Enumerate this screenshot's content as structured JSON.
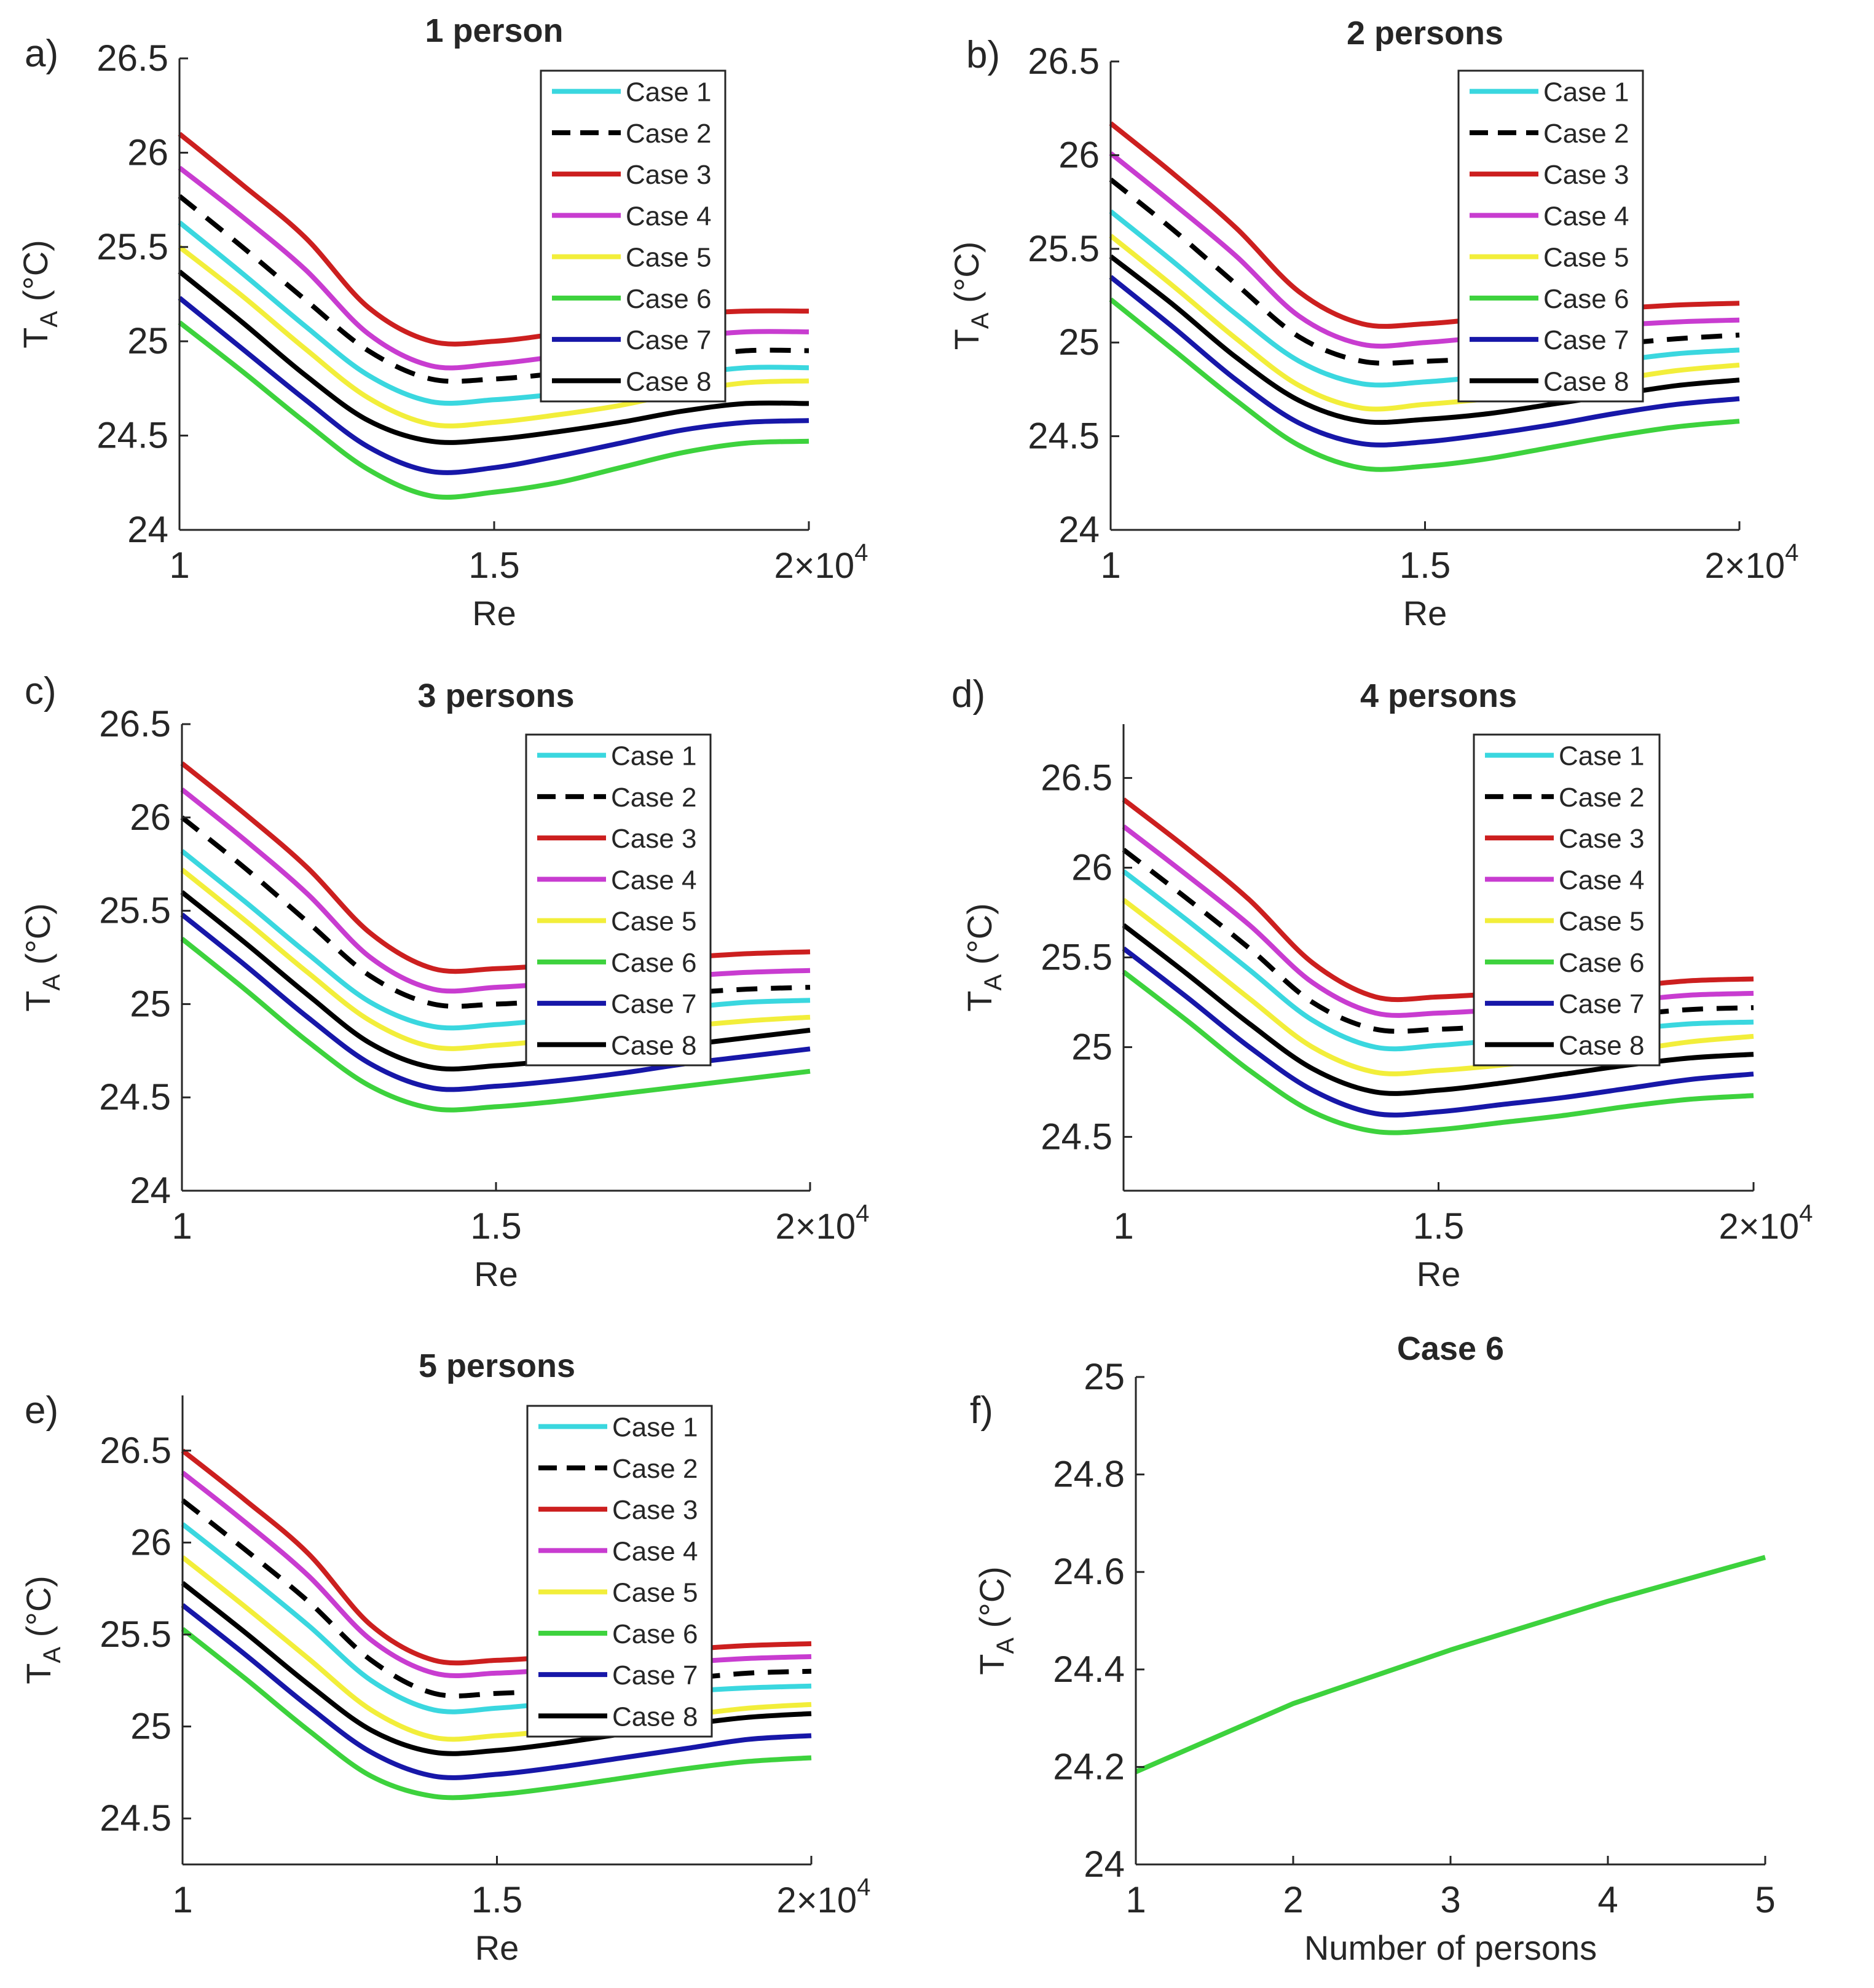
{
  "colors": {
    "case1": "#3ad7df",
    "case2": "#000000",
    "case3": "#cc1f1f",
    "case4": "#c83cd0",
    "case5": "#f2ee3a",
    "case6": "#3dd23d",
    "case7": "#1717a8",
    "case8": "#000000"
  },
  "chart_data": [
    {
      "type": "line",
      "panel": "a)",
      "title": "1 person",
      "xlabel": "Re",
      "ylabel_main": "T",
      "ylabel_sub": "A",
      "ylabel_unit": "(°C)",
      "x_exponent_base": "2×10",
      "x_exponent_power": "4",
      "xlim": [
        1,
        2
      ],
      "ylim": [
        24,
        26.5
      ],
      "xticks": [
        1,
        1.5,
        2
      ],
      "xtick_labels": [
        "1",
        "1.5",
        ""
      ],
      "yticks": [
        24,
        24.5,
        25,
        25.5,
        26,
        26.5
      ],
      "ytick_labels": [
        "24",
        "24.5",
        "25",
        "25.5",
        "26",
        "26.5"
      ],
      "legend": [
        "Case 1",
        "Case 2",
        "Case 3",
        "Case 4",
        "Case 5",
        "Case 6",
        "Case 7",
        "Case 8"
      ],
      "legend_position": "top-right",
      "x": [
        1.0,
        1.1,
        1.2,
        1.3,
        1.4,
        1.5,
        1.6,
        1.7,
        1.8,
        1.9,
        2.0
      ],
      "series": [
        {
          "name": "Case 1",
          "values": [
            25.63,
            25.36,
            25.08,
            24.82,
            24.68,
            24.69,
            24.72,
            24.76,
            24.82,
            24.86,
            24.86
          ]
        },
        {
          "name": "Case 2",
          "values": [
            25.77,
            25.5,
            25.22,
            24.95,
            24.8,
            24.8,
            24.83,
            24.87,
            24.91,
            24.95,
            24.95
          ]
        },
        {
          "name": "Case 3",
          "values": [
            26.1,
            25.83,
            25.55,
            25.18,
            25.0,
            25.0,
            25.04,
            25.09,
            25.14,
            25.16,
            25.16
          ]
        },
        {
          "name": "Case 4",
          "values": [
            25.92,
            25.66,
            25.38,
            25.04,
            24.87,
            24.88,
            24.92,
            24.97,
            25.02,
            25.05,
            25.05
          ]
        },
        {
          "name": "Case 5",
          "values": [
            25.5,
            25.24,
            24.96,
            24.7,
            24.56,
            24.57,
            24.61,
            24.66,
            24.73,
            24.78,
            24.79
          ]
        },
        {
          "name": "Case 6",
          "values": [
            25.1,
            24.84,
            24.57,
            24.32,
            24.18,
            24.2,
            24.25,
            24.33,
            24.41,
            24.46,
            24.47
          ]
        },
        {
          "name": "Case 7",
          "values": [
            25.23,
            24.96,
            24.69,
            24.44,
            24.31,
            24.33,
            24.39,
            24.46,
            24.53,
            24.57,
            24.58
          ]
        },
        {
          "name": "Case 8",
          "values": [
            25.37,
            25.1,
            24.82,
            24.58,
            24.47,
            24.48,
            24.52,
            24.57,
            24.63,
            24.67,
            24.67
          ]
        }
      ]
    },
    {
      "type": "line",
      "panel": "b)",
      "title": "2 persons",
      "xlabel": "Re",
      "ylabel_main": "T",
      "ylabel_sub": "A",
      "ylabel_unit": "(°C)",
      "x_exponent_base": "2×10",
      "x_exponent_power": "4",
      "xlim": [
        1,
        2
      ],
      "ylim": [
        24,
        26.5
      ],
      "xticks": [
        1,
        1.5,
        2
      ],
      "xtick_labels": [
        "1",
        "1.5",
        ""
      ],
      "yticks": [
        24,
        24.5,
        25,
        25.5,
        26,
        26.5
      ],
      "ytick_labels": [
        "24",
        "24.5",
        "25",
        "25.5",
        "26",
        "26.5"
      ],
      "legend": [
        "Case 1",
        "Case 2",
        "Case 3",
        "Case 4",
        "Case 5",
        "Case 6",
        "Case 7",
        "Case 8"
      ],
      "legend_position": "top-right",
      "x": [
        1.0,
        1.1,
        1.2,
        1.3,
        1.4,
        1.5,
        1.6,
        1.7,
        1.8,
        1.9,
        2.0
      ],
      "series": [
        {
          "name": "Case 1",
          "values": [
            25.7,
            25.43,
            25.15,
            24.9,
            24.78,
            24.79,
            24.82,
            24.86,
            24.9,
            24.94,
            24.96
          ]
        },
        {
          "name": "Case 2",
          "values": [
            25.87,
            25.6,
            25.31,
            25.03,
            24.9,
            24.9,
            24.92,
            24.96,
            24.99,
            25.02,
            25.04
          ]
        },
        {
          "name": "Case 3",
          "values": [
            26.17,
            25.9,
            25.61,
            25.27,
            25.1,
            25.1,
            25.13,
            25.16,
            25.18,
            25.2,
            25.21
          ]
        },
        {
          "name": "Case 4",
          "values": [
            26.01,
            25.74,
            25.46,
            25.14,
            24.99,
            25.0,
            25.03,
            25.06,
            25.09,
            25.11,
            25.12
          ]
        },
        {
          "name": "Case 5",
          "values": [
            25.57,
            25.3,
            25.02,
            24.77,
            24.65,
            24.67,
            24.7,
            24.75,
            24.8,
            24.85,
            24.88
          ]
        },
        {
          "name": "Case 6",
          "values": [
            25.23,
            24.96,
            24.69,
            24.45,
            24.33,
            24.34,
            24.38,
            24.44,
            24.5,
            24.55,
            24.58
          ]
        },
        {
          "name": "Case 7",
          "values": [
            25.35,
            25.08,
            24.8,
            24.57,
            24.46,
            24.47,
            24.51,
            24.56,
            24.62,
            24.67,
            24.7
          ]
        },
        {
          "name": "Case 8",
          "values": [
            25.46,
            25.2,
            24.92,
            24.69,
            24.58,
            24.59,
            24.62,
            24.67,
            24.72,
            24.77,
            24.8
          ]
        }
      ]
    },
    {
      "type": "line",
      "panel": "c)",
      "title": "3 persons",
      "xlabel": "Re",
      "ylabel_main": "T",
      "ylabel_sub": "A",
      "ylabel_unit": "(°C)",
      "x_exponent_base": "2×10",
      "x_exponent_power": "4",
      "xlim": [
        1,
        2
      ],
      "ylim": [
        24,
        26.5
      ],
      "xticks": [
        1,
        1.5,
        2
      ],
      "xtick_labels": [
        "1",
        "1.5",
        ""
      ],
      "yticks": [
        24,
        24.5,
        25,
        25.5,
        26,
        26.5
      ],
      "ytick_labels": [
        "24",
        "24.5",
        "25",
        "25.5",
        "26",
        "26.5"
      ],
      "legend": [
        "Case 1",
        "Case 2",
        "Case 3",
        "Case 4",
        "Case 5",
        "Case 6",
        "Case 7",
        "Case 8"
      ],
      "legend_position": "top-right",
      "x": [
        1.0,
        1.1,
        1.2,
        1.3,
        1.4,
        1.5,
        1.6,
        1.7,
        1.8,
        1.9,
        2.0
      ],
      "series": [
        {
          "name": "Case 1",
          "values": [
            25.82,
            25.55,
            25.27,
            25.01,
            24.88,
            24.89,
            24.92,
            24.95,
            24.98,
            25.01,
            25.02
          ]
        },
        {
          "name": "Case 2",
          "values": [
            26.0,
            25.73,
            25.44,
            25.15,
            25.0,
            25.0,
            25.02,
            25.04,
            25.06,
            25.08,
            25.09
          ]
        },
        {
          "name": "Case 3",
          "values": [
            26.29,
            26.02,
            25.73,
            25.38,
            25.19,
            25.19,
            25.21,
            25.23,
            25.25,
            25.27,
            25.28
          ]
        },
        {
          "name": "Case 4",
          "values": [
            26.15,
            25.88,
            25.59,
            25.25,
            25.08,
            25.09,
            25.11,
            25.13,
            25.15,
            25.17,
            25.18
          ]
        },
        {
          "name": "Case 5",
          "values": [
            25.72,
            25.45,
            25.17,
            24.91,
            24.77,
            24.78,
            24.81,
            24.84,
            24.88,
            24.91,
            24.93
          ]
        },
        {
          "name": "Case 6",
          "values": [
            25.35,
            25.08,
            24.8,
            24.56,
            24.44,
            24.45,
            24.48,
            24.52,
            24.56,
            24.6,
            24.64
          ]
        },
        {
          "name": "Case 7",
          "values": [
            25.48,
            25.21,
            24.93,
            24.68,
            24.55,
            24.56,
            24.59,
            24.63,
            24.68,
            24.72,
            24.76
          ]
        },
        {
          "name": "Case 8",
          "values": [
            25.6,
            25.33,
            25.05,
            24.79,
            24.66,
            24.67,
            24.7,
            24.74,
            24.78,
            24.82,
            24.86
          ]
        }
      ]
    },
    {
      "type": "line",
      "panel": "d)",
      "title": "4 persons",
      "xlabel": "Re",
      "ylabel_main": "T",
      "ylabel_sub": "A",
      "ylabel_unit": "(°C)",
      "x_exponent_base": "2×10",
      "x_exponent_power": "4",
      "xlim": [
        1,
        2
      ],
      "ylim": [
        24.2,
        26.8
      ],
      "xticks": [
        1,
        1.5,
        2
      ],
      "xtick_labels": [
        "1",
        "1.5",
        ""
      ],
      "yticks": [
        24.5,
        25,
        25.5,
        26,
        26.5
      ],
      "ytick_labels": [
        "24.5",
        "25",
        "25.5",
        "26",
        "26.5"
      ],
      "legend": [
        "Case 1",
        "Case 2",
        "Case 3",
        "Case 4",
        "Case 5",
        "Case 6",
        "Case 7",
        "Case 8"
      ],
      "legend_position": "top-right",
      "x": [
        1.0,
        1.1,
        1.2,
        1.3,
        1.4,
        1.5,
        1.6,
        1.7,
        1.8,
        1.9,
        2.0
      ],
      "series": [
        {
          "name": "Case 1",
          "values": [
            25.98,
            25.71,
            25.43,
            25.15,
            25.0,
            25.01,
            25.04,
            25.07,
            25.1,
            25.13,
            25.14
          ]
        },
        {
          "name": "Case 2",
          "values": [
            26.1,
            25.83,
            25.55,
            25.25,
            25.1,
            25.1,
            25.12,
            25.15,
            25.18,
            25.21,
            25.22
          ]
        },
        {
          "name": "Case 3",
          "values": [
            26.38,
            26.11,
            25.82,
            25.47,
            25.28,
            25.28,
            25.3,
            25.32,
            25.34,
            25.37,
            25.38
          ]
        },
        {
          "name": "Case 4",
          "values": [
            26.23,
            25.96,
            25.68,
            25.36,
            25.19,
            25.19,
            25.21,
            25.24,
            25.26,
            25.29,
            25.3
          ]
        },
        {
          "name": "Case 5",
          "values": [
            25.82,
            25.55,
            25.27,
            25.0,
            24.86,
            24.87,
            24.9,
            24.94,
            24.98,
            25.03,
            25.06
          ]
        },
        {
          "name": "Case 6",
          "values": [
            25.42,
            25.15,
            24.87,
            24.64,
            24.53,
            24.54,
            24.58,
            24.62,
            24.67,
            24.71,
            24.73
          ]
        },
        {
          "name": "Case 7",
          "values": [
            25.55,
            25.28,
            25.0,
            24.76,
            24.63,
            24.64,
            24.68,
            24.72,
            24.77,
            24.82,
            24.85
          ]
        },
        {
          "name": "Case 8",
          "values": [
            25.68,
            25.41,
            25.13,
            24.88,
            24.75,
            24.76,
            24.8,
            24.85,
            24.9,
            24.94,
            24.96
          ]
        }
      ]
    },
    {
      "type": "line",
      "panel": "e)",
      "title": "5 persons",
      "xlabel": "Re",
      "ylabel_main": "T",
      "ylabel_sub": "A",
      "ylabel_unit": "(°C)",
      "x_exponent_base": "2×10",
      "x_exponent_power": "4",
      "xlim": [
        1,
        2
      ],
      "ylim": [
        24.25,
        26.8
      ],
      "xticks": [
        1,
        1.5,
        2
      ],
      "xtick_labels": [
        "1",
        "1.5",
        ""
      ],
      "yticks": [
        24.5,
        25,
        25.5,
        26,
        26.5
      ],
      "ytick_labels": [
        "24.5",
        "25",
        "25.5",
        "26",
        "26.5"
      ],
      "legend": [
        "Case 1",
        "Case 2",
        "Case 3",
        "Case 4",
        "Case 5",
        "Case 6",
        "Case 7",
        "Case 8"
      ],
      "legend_position": "top-right",
      "x": [
        1.0,
        1.1,
        1.2,
        1.3,
        1.4,
        1.5,
        1.6,
        1.7,
        1.8,
        1.9,
        2.0
      ],
      "series": [
        {
          "name": "Case 1",
          "values": [
            26.1,
            25.83,
            25.55,
            25.25,
            25.09,
            25.1,
            25.13,
            25.16,
            25.19,
            25.21,
            25.22
          ]
        },
        {
          "name": "Case 2",
          "values": [
            26.23,
            25.96,
            25.68,
            25.36,
            25.18,
            25.18,
            25.2,
            25.23,
            25.26,
            25.29,
            25.3
          ]
        },
        {
          "name": "Case 3",
          "values": [
            26.5,
            26.23,
            25.94,
            25.55,
            25.36,
            25.36,
            25.38,
            25.4,
            25.42,
            25.44,
            25.45
          ]
        },
        {
          "name": "Case 4",
          "values": [
            26.38,
            26.11,
            25.82,
            25.47,
            25.29,
            25.29,
            25.31,
            25.33,
            25.35,
            25.37,
            25.38
          ]
        },
        {
          "name": "Case 5",
          "values": [
            25.92,
            25.65,
            25.37,
            25.09,
            24.94,
            24.95,
            24.98,
            25.02,
            25.06,
            25.1,
            25.12
          ]
        },
        {
          "name": "Case 6",
          "values": [
            25.53,
            25.26,
            24.98,
            24.73,
            24.62,
            24.63,
            24.67,
            24.72,
            24.77,
            24.81,
            24.83
          ]
        },
        {
          "name": "Case 7",
          "values": [
            25.66,
            25.39,
            25.11,
            24.86,
            24.73,
            24.74,
            24.78,
            24.83,
            24.88,
            24.93,
            24.95
          ]
        },
        {
          "name": "Case 8",
          "values": [
            25.78,
            25.51,
            25.23,
            24.98,
            24.86,
            24.87,
            24.91,
            24.96,
            25.01,
            25.05,
            25.07
          ]
        }
      ]
    },
    {
      "type": "line",
      "panel": "f)",
      "title": "Case 6",
      "xlabel": "Number of persons",
      "ylabel_main": "T",
      "ylabel_sub": "A",
      "ylabel_unit": "(°C)",
      "xlim": [
        1,
        5
      ],
      "ylim": [
        24,
        25
      ],
      "xticks": [
        1,
        2,
        3,
        4,
        5
      ],
      "xtick_labels": [
        "1",
        "2",
        "3",
        "4",
        "5"
      ],
      "yticks": [
        24,
        24.2,
        24.4,
        24.6,
        24.8,
        25
      ],
      "ytick_labels": [
        "24",
        "24.2",
        "24.4",
        "24.6",
        "24.8",
        "25"
      ],
      "x": [
        1,
        2,
        3,
        4,
        5
      ],
      "series": [
        {
          "values": [
            24.19,
            24.33,
            24.44,
            24.54,
            24.63
          ]
        }
      ]
    }
  ]
}
